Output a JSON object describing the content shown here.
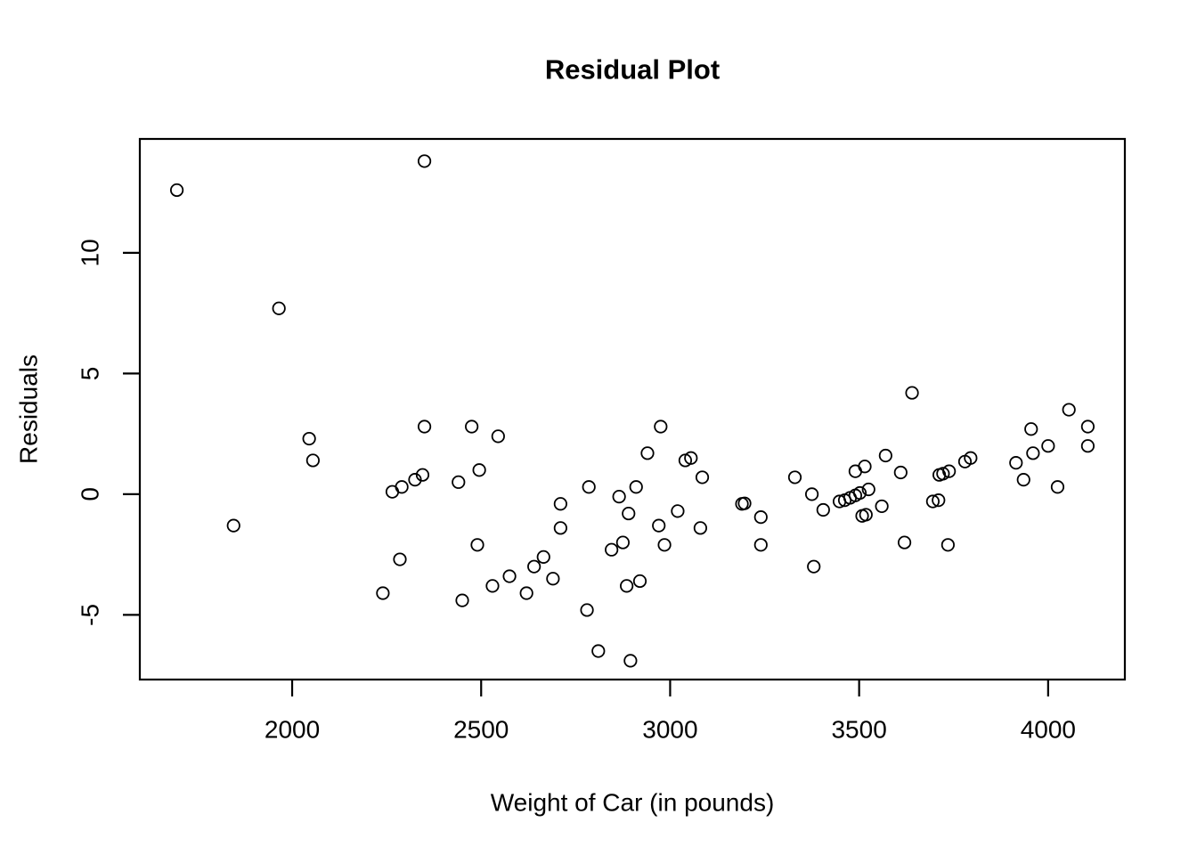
{
  "chart_data": {
    "type": "scatter",
    "title": "Residual Plot",
    "xlabel": "Weight of Car (in pounds)",
    "ylabel": "Residuals",
    "xlim": [
      1597,
      4203
    ],
    "ylim": [
      -7.68,
      14.72
    ],
    "x_ticks": [
      2000,
      2500,
      3000,
      3500,
      4000
    ],
    "y_ticks": [
      -5,
      0,
      5,
      10
    ],
    "grid": false,
    "legend": null,
    "marker": "open-circle",
    "marker_color": "#000000",
    "background_color": "#ffffff",
    "points": [
      [
        1695,
        12.6
      ],
      [
        1845,
        -1.3
      ],
      [
        1965,
        7.7
      ],
      [
        2045,
        2.3
      ],
      [
        2055,
        1.4
      ],
      [
        2240,
        -4.1
      ],
      [
        2265,
        0.1
      ],
      [
        2285,
        -2.7
      ],
      [
        2290,
        0.3
      ],
      [
        2325,
        0.6
      ],
      [
        2345,
        0.8
      ],
      [
        2350,
        13.8
      ],
      [
        2350,
        2.8
      ],
      [
        2440,
        0.5
      ],
      [
        2450,
        -4.4
      ],
      [
        2475,
        2.8
      ],
      [
        2490,
        -2.1
      ],
      [
        2495,
        1.0
      ],
      [
        2530,
        -3.8
      ],
      [
        2545,
        2.4
      ],
      [
        2575,
        -3.4
      ],
      [
        2620,
        -4.1
      ],
      [
        2640,
        -3.0
      ],
      [
        2665,
        -2.6
      ],
      [
        2690,
        -3.5
      ],
      [
        2710,
        -0.4
      ],
      [
        2710,
        -1.4
      ],
      [
        2780,
        -4.8
      ],
      [
        2785,
        0.3
      ],
      [
        2810,
        -6.5
      ],
      [
        2845,
        -2.3
      ],
      [
        2865,
        -0.1
      ],
      [
        2875,
        -2.0
      ],
      [
        2885,
        -3.8
      ],
      [
        2890,
        -0.8
      ],
      [
        2895,
        -6.9
      ],
      [
        2910,
        0.3
      ],
      [
        2920,
        -3.6
      ],
      [
        2940,
        1.7
      ],
      [
        2970,
        -1.3
      ],
      [
        2975,
        2.8
      ],
      [
        2985,
        -2.1
      ],
      [
        3020,
        -0.7
      ],
      [
        3040,
        1.4
      ],
      [
        3055,
        1.5
      ],
      [
        3080,
        -1.4
      ],
      [
        3085,
        0.7
      ],
      [
        3190,
        -0.4
      ],
      [
        3197,
        -0.38
      ],
      [
        3240,
        -0.95
      ],
      [
        3240,
        -2.1
      ],
      [
        3330,
        0.7
      ],
      [
        3375,
        0.0
      ],
      [
        3380,
        -3.0
      ],
      [
        3405,
        -0.65
      ],
      [
        3448,
        -0.3
      ],
      [
        3462,
        -0.25
      ],
      [
        3476,
        -0.15
      ],
      [
        3490,
        -0.05
      ],
      [
        3502,
        0.05
      ],
      [
        3490,
        0.95
      ],
      [
        3515,
        1.15
      ],
      [
        3508,
        -0.9
      ],
      [
        3518,
        -0.85
      ],
      [
        3525,
        0.2
      ],
      [
        3560,
        -0.5
      ],
      [
        3570,
        1.6
      ],
      [
        3610,
        0.9
      ],
      [
        3620,
        -2.0
      ],
      [
        3640,
        4.2
      ],
      [
        3695,
        -0.3
      ],
      [
        3710,
        -0.25
      ],
      [
        3712,
        0.8
      ],
      [
        3722,
        0.85
      ],
      [
        3738,
        0.95
      ],
      [
        3735,
        -2.1
      ],
      [
        3780,
        1.35
      ],
      [
        3795,
        1.5
      ],
      [
        3915,
        1.3
      ],
      [
        3935,
        0.6
      ],
      [
        3955,
        2.7
      ],
      [
        3960,
        1.7
      ],
      [
        4000,
        2.0
      ],
      [
        4025,
        0.3
      ],
      [
        4055,
        3.5
      ],
      [
        4105,
        2.8
      ],
      [
        4105,
        2.0
      ]
    ]
  }
}
